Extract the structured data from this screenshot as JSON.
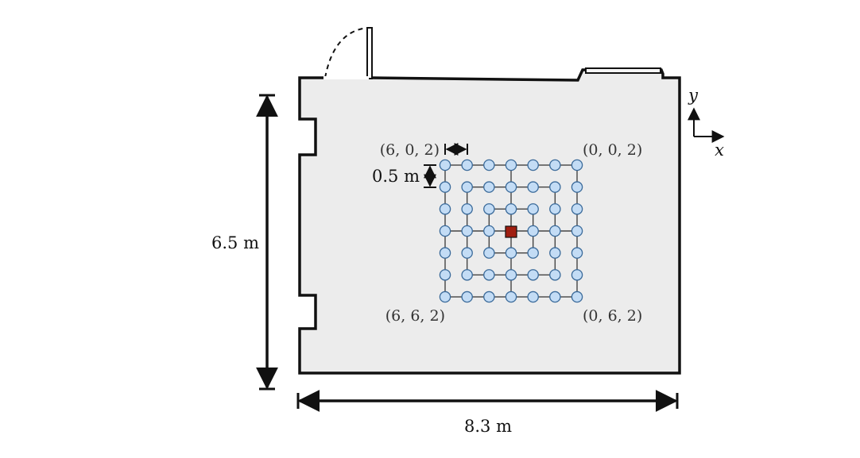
{
  "dimensions": {
    "height_label": "6.5 m",
    "width_label": "8.3 m",
    "spacing_label": "0.5 m"
  },
  "corners": {
    "top_left": "(6, 0, 2)",
    "top_right": "(0, 0, 2)",
    "bottom_left": "(6, 6, 2)",
    "bottom_right": "(0, 6, 2)"
  },
  "axes": {
    "x": "x",
    "y": "y"
  },
  "grid": {
    "rows": 7,
    "cols": 7,
    "spacing_m": 0.5
  },
  "colors": {
    "floor": "#ececec",
    "wall": "#111111",
    "marker_fill": "#c3dcf5",
    "marker_stroke": "#3a6a9a",
    "grid_line": "#444444",
    "center_fill": "#a01e10"
  }
}
